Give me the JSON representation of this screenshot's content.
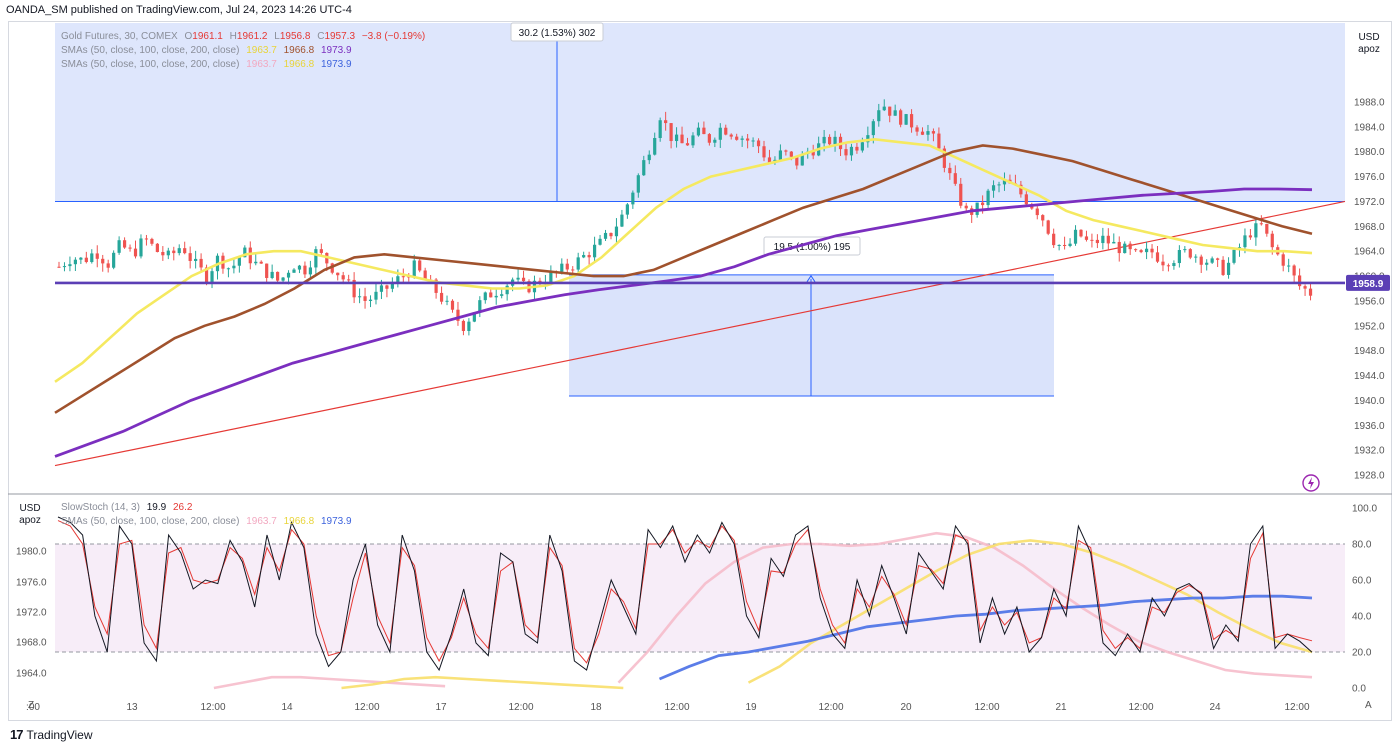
{
  "caption": "OANDA_SM published on TradingView.com, Jul 24, 2023 14:26 UTC-4",
  "footer_brand": "TradingView",
  "footer_logo": "17",
  "colors": {
    "background": "#ffffff",
    "candle_up": "#26a69a",
    "candle_down": "#ef5350",
    "sma50": "#f5e960",
    "sma100": "#a0522d",
    "sma200": "#7b2fbf",
    "trendline": "#e53935",
    "level": "#5b3fb5",
    "measure_fill": "#d6e0fb",
    "stoch_k": "#131722",
    "stoch_d": "#e53935",
    "sub_sma50": "#f8df6a",
    "sub_sma100": "#f6b8c8",
    "sub_sma200": "#5b7de8"
  },
  "main_pane": {
    "unit_label": [
      "USD",
      "apoz"
    ],
    "legend": {
      "line1": {
        "name": "Gold Futures, 30, COMEX",
        "o_label": "O",
        "o": "1961.1",
        "h_label": "H",
        "h": "1961.2",
        "l_label": "L",
        "l": "1956.8",
        "c_label": "C",
        "c": "1957.3",
        "chg": "−3.8 (−0.19%)"
      },
      "line2": {
        "name": "SMAs (50, close, 100, close, 200, close)",
        "v1": "1963.7",
        "v2": "1966.8",
        "v3": "1973.9"
      },
      "line3": {
        "name": "SMAs (50, close, 100, close, 200, close)",
        "v1": "1963.7",
        "v2": "1966.8",
        "v3": "1973.9"
      }
    },
    "measure_top_label": "30.2 (1.53%) 302",
    "measure_mid_label": "19.5 (1.00%) 195",
    "price_tag": "1958.9",
    "lightning_icon": "lightning-icon"
  },
  "sub_pane": {
    "unit_label": [
      "USD",
      "apoz"
    ],
    "legend": {
      "line1": {
        "name": "SlowStoch (14, 3)",
        "k": "19.9",
        "d": "26.2"
      },
      "line2": {
        "name": "SMAs (50, close, 100, close, 200, close)",
        "v1": "1963.7",
        "v2": "1966.8",
        "v3": "1973.9"
      }
    },
    "corner_left": "Z",
    "corner_right": "A"
  },
  "chart_data": [
    {
      "type": "candlestick",
      "symbol": "Gold Futures, 30, COMEX",
      "ylim": [
        1926,
        1992
      ],
      "y_ticks": [
        "1988.0",
        "1984.0",
        "1980.0",
        "1976.0",
        "1972.0",
        "1968.0",
        "1964.0",
        "1960.0",
        "1956.0",
        "1952.0",
        "1948.0",
        "1944.0",
        "1940.0",
        "1936.0",
        "1932.0",
        "1928.0"
      ],
      "x_ticks": [
        ":00",
        "13",
        "12:00",
        "14",
        "12:00",
        "17",
        "12:00",
        "18",
        "12:00",
        "19",
        "12:00",
        "20",
        "12:00",
        "21",
        "12:00",
        "24",
        "12:00"
      ],
      "close_path": [
        1961.5,
        1963,
        1962.5,
        1964,
        1962,
        1965,
        1963.5,
        1966,
        1964,
        1963,
        1965,
        1962,
        1960,
        1963,
        1961,
        1964,
        1962,
        1960.5,
        1959,
        1962,
        1961,
        1964,
        1962,
        1960,
        1957.5,
        1956,
        1957,
        1958.5,
        1960,
        1961.5,
        1959,
        1957,
        1954,
        1952,
        1955,
        1957,
        1958,
        1959.5,
        1958,
        1959,
        1960,
        1961,
        1962,
        1963.5,
        1965,
        1967,
        1970,
        1975,
        1980,
        1986,
        1982,
        1981,
        1983,
        1982,
        1984,
        1983,
        1982,
        1981,
        1978,
        1980,
        1978,
        1980,
        1981,
        1982,
        1980,
        1981,
        1984,
        1988,
        1986,
        1985,
        1984,
        1983,
        1979,
        1974,
        1970,
        1971,
        1974,
        1975,
        1974,
        1972,
        1970,
        1966,
        1964,
        1967,
        1965,
        1966,
        1965,
        1964,
        1963,
        1964,
        1962.5,
        1963,
        1964,
        1963,
        1962,
        1961,
        1964,
        1967,
        1968,
        1964,
        1962,
        1958.5,
        1957.3
      ],
      "sma50_path": [
        1943,
        1946,
        1950,
        1954,
        1957,
        1960,
        1962,
        1963.5,
        1964,
        1964,
        1963,
        1962,
        1961,
        1960,
        1959,
        1958.5,
        1958,
        1958,
        1958.5,
        1960,
        1963,
        1967,
        1971,
        1974,
        1976,
        1977,
        1978,
        1979,
        1980.5,
        1981.5,
        1982,
        1981.5,
        1981,
        1979,
        1977,
        1975,
        1973,
        1970.5,
        1969,
        1968,
        1967,
        1966,
        1965,
        1964.5,
        1964,
        1964,
        1963.7
      ],
      "sma100_path": [
        1938,
        1941,
        1944,
        1947,
        1950,
        1952,
        1953.5,
        1955.5,
        1958,
        1961,
        1963,
        1963.5,
        1963,
        1962.5,
        1962,
        1961.5,
        1961,
        1960.5,
        1960,
        1960,
        1961,
        1963,
        1965,
        1967,
        1969,
        1971,
        1972.5,
        1974,
        1976,
        1978,
        1980,
        1981,
        1980.5,
        1979.5,
        1978.5,
        1977,
        1975.5,
        1974,
        1972.5,
        1971,
        1969.5,
        1968,
        1966.8
      ],
      "sma200_path": [
        1931,
        1933,
        1935,
        1937.5,
        1940,
        1942,
        1944,
        1946,
        1947.5,
        1949,
        1950.5,
        1952,
        1953.5,
        1955,
        1956,
        1957,
        1957.8,
        1958.5,
        1959.2,
        1960,
        1961.5,
        1963.5,
        1965,
        1966.5,
        1967.5,
        1968.5,
        1969.5,
        1970.5,
        1971,
        1971.5,
        1972,
        1972.5,
        1973,
        1973.3,
        1973.6,
        1974,
        1974,
        1973.9
      ],
      "trendline": {
        "from": 1930,
        "to": 1972
      },
      "horizontal_level": 1958.9,
      "measure_boxes": [
        {
          "label": "30.2 (1.53%) 302",
          "from": 1972,
          "to": 2002.2
        },
        {
          "label": "19.5 (1.00%) 195",
          "from": 1940.7,
          "to": 1960.2
        }
      ]
    },
    {
      "type": "line",
      "name": "SlowStoch (14, 3)",
      "ylim": [
        0,
        100
      ],
      "y_ticks_right": [
        "100.0",
        "80.0",
        "60.0",
        "40.0",
        "20.0",
        "0.0"
      ],
      "y_ticks_left": [
        "1980.0",
        "1976.0",
        "1972.0",
        "1968.0",
        "1964.0"
      ],
      "bands": [
        80,
        20
      ],
      "k_path": [
        95,
        92,
        85,
        40,
        20,
        90,
        80,
        25,
        15,
        85,
        75,
        55,
        60,
        58,
        82,
        70,
        45,
        85,
        60,
        92,
        78,
        30,
        12,
        20,
        60,
        80,
        35,
        20,
        85,
        65,
        20,
        10,
        30,
        55,
        25,
        18,
        75,
        70,
        30,
        25,
        85,
        65,
        15,
        10,
        35,
        60,
        45,
        30,
        88,
        78,
        90,
        70,
        85,
        75,
        92,
        80,
        40,
        28,
        72,
        62,
        85,
        90,
        50,
        30,
        22,
        60,
        40,
        68,
        50,
        30,
        75,
        65,
        55,
        90,
        80,
        25,
        50,
        30,
        45,
        20,
        28,
        55,
        40,
        90,
        75,
        25,
        18,
        30,
        20,
        50,
        40,
        55,
        58,
        52,
        22,
        35,
        26,
        80,
        90,
        22,
        30,
        26,
        19.9
      ],
      "d_path": [
        93,
        90,
        80,
        45,
        30,
        80,
        82,
        35,
        22,
        75,
        78,
        60,
        58,
        60,
        78,
        72,
        52,
        78,
        65,
        88,
        80,
        40,
        18,
        20,
        50,
        75,
        40,
        25,
        78,
        68,
        28,
        15,
        28,
        50,
        30,
        22,
        65,
        70,
        35,
        28,
        78,
        68,
        22,
        14,
        30,
        55,
        48,
        33,
        80,
        80,
        88,
        75,
        82,
        78,
        90,
        82,
        48,
        32,
        65,
        64,
        80,
        88,
        55,
        35,
        25,
        55,
        45,
        62,
        52,
        35,
        68,
        66,
        58,
        85,
        82,
        32,
        45,
        35,
        42,
        25,
        28,
        50,
        44,
        82,
        78,
        32,
        22,
        28,
        22,
        45,
        42,
        53,
        57,
        53,
        27,
        32,
        28,
        72,
        86,
        28,
        30,
        28,
        26.2
      ],
      "overlay_sma50": [
        null,
        null,
        null,
        null,
        null,
        0,
        2,
        5,
        6,
        5,
        4,
        3,
        2,
        1,
        0,
        null,
        null,
        null,
        3,
        12,
        25,
        35,
        45,
        55,
        65,
        74,
        80,
        82,
        80,
        75,
        68,
        60,
        52,
        42,
        33,
        25,
        20
      ],
      "overlay_sma100": [
        null,
        0,
        3,
        6,
        6,
        5,
        4,
        3,
        2,
        1,
        null,
        null,
        null,
        null,
        null,
        3,
        20,
        40,
        58,
        70,
        78,
        80,
        80,
        79,
        80,
        83,
        86,
        84,
        78,
        68,
        56,
        45,
        35,
        26,
        20,
        15,
        10,
        8,
        7,
        6
      ],
      "overlay_sma200": [
        null,
        null,
        null,
        null,
        null,
        null,
        null,
        null,
        null,
        null,
        null,
        null,
        null,
        null,
        null,
        null,
        5,
        12,
        18,
        20,
        23,
        26,
        30,
        34,
        36,
        38,
        40,
        41,
        43,
        44,
        45,
        46,
        48,
        49,
        50,
        50,
        51,
        51,
        50
      ]
    }
  ]
}
